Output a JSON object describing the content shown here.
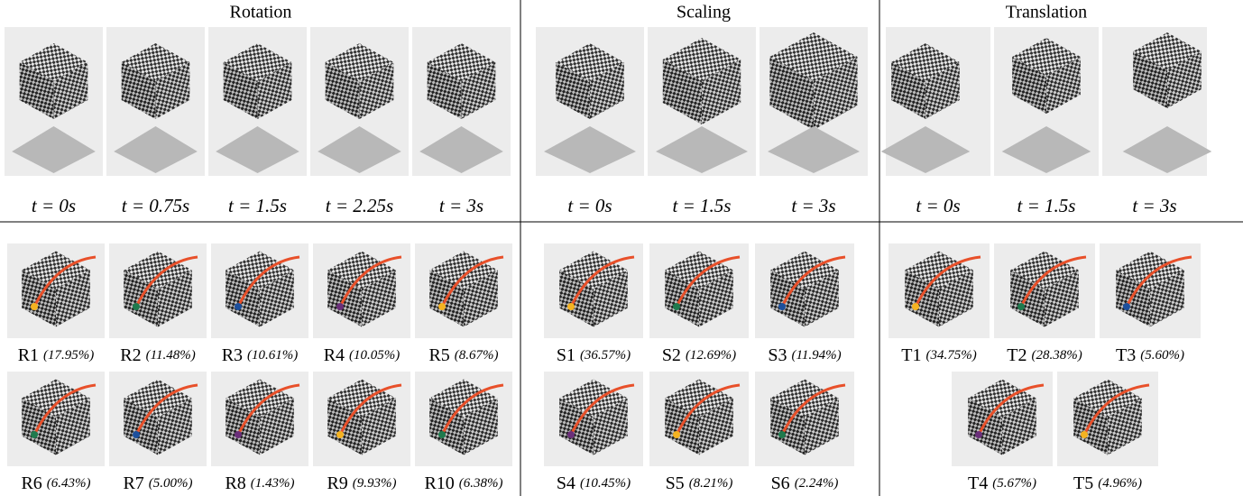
{
  "sections": [
    {
      "title": "Rotation",
      "frames": [
        "t = 0s",
        "t = 0.75s",
        "t = 1.5s",
        "t = 2.25s",
        "t = 3s"
      ],
      "gestures": [
        {
          "id": "R1",
          "share": "(17.95%)"
        },
        {
          "id": "R2",
          "share": "(11.48%)"
        },
        {
          "id": "R3",
          "share": "(10.61%)"
        },
        {
          "id": "R4",
          "share": "(10.05%)"
        },
        {
          "id": "R5",
          "share": "(8.67%)"
        },
        {
          "id": "R6",
          "share": "(6.43%)"
        },
        {
          "id": "R7",
          "share": "(5.00%)"
        },
        {
          "id": "R8",
          "share": "(1.43%)"
        },
        {
          "id": "R9",
          "share": "(9.93%)"
        },
        {
          "id": "R10",
          "share": "(6.38%)"
        }
      ]
    },
    {
      "title": "Scaling",
      "frames": [
        "t = 0s",
        "t = 1.5s",
        "t = 3s"
      ],
      "gestures": [
        {
          "id": "S1",
          "share": "(36.57%)"
        },
        {
          "id": "S2",
          "share": "(12.69%)"
        },
        {
          "id": "S3",
          "share": "(11.94%)"
        },
        {
          "id": "S4",
          "share": "(10.45%)"
        },
        {
          "id": "S5",
          "share": "(8.21%)"
        },
        {
          "id": "S6",
          "share": "(2.24%)"
        }
      ]
    },
    {
      "title": "Translation",
      "frames": [
        "t = 0s",
        "t = 1.5s",
        "t = 3s"
      ],
      "gestures": [
        {
          "id": "T1",
          "share": "(34.75%)"
        },
        {
          "id": "T2",
          "share": "(28.38%)"
        },
        {
          "id": "T3",
          "share": "(5.60%)"
        },
        {
          "id": "T4",
          "share": "(5.67%)"
        },
        {
          "id": "T5",
          "share": "(4.96%)"
        }
      ]
    }
  ]
}
